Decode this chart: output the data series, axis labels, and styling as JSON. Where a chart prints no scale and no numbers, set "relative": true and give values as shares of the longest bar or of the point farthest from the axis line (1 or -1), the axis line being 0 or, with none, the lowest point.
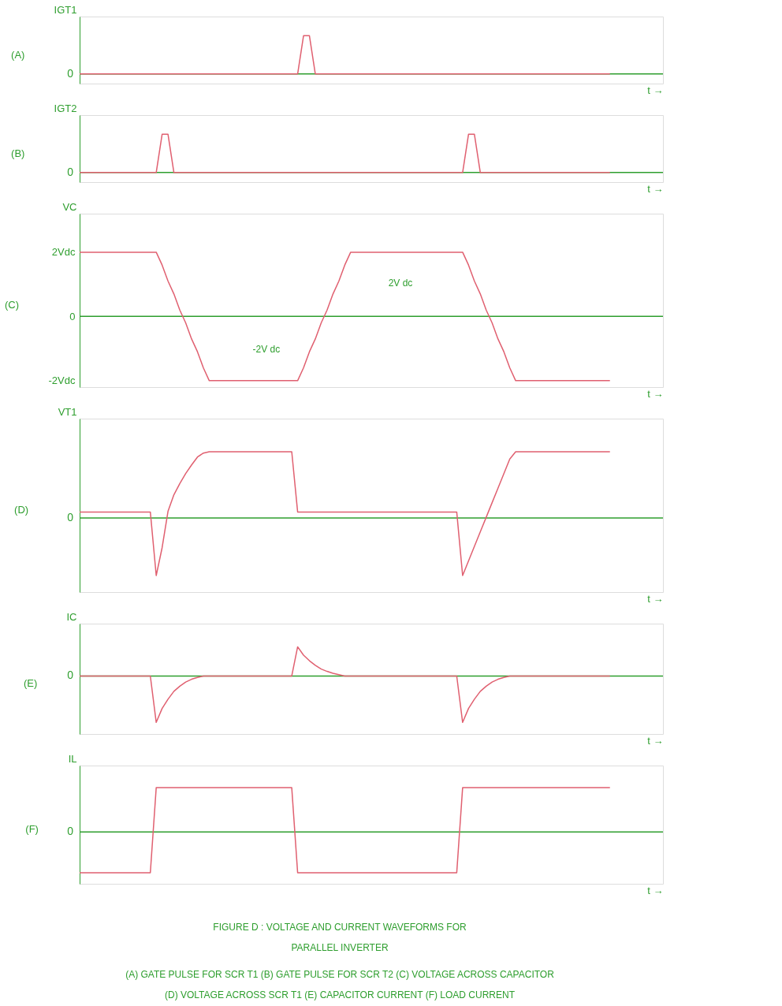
{
  "chart_data": [
    {
      "type": "line",
      "title": "(A)",
      "ylabel": "IGT1",
      "xlabel": "t →",
      "relative": true,
      "grid": false,
      "categories": [
        null,
        null,
        null,
        null,
        null,
        null,
        null,
        null,
        null,
        null,
        null,
        null,
        null,
        null,
        null,
        null,
        null,
        null,
        null,
        null,
        null,
        null,
        null,
        null,
        null,
        null,
        null,
        null,
        null,
        null,
        null,
        null,
        null,
        null,
        null,
        null,
        null,
        null,
        null,
        null,
        null,
        null,
        null,
        null,
        null,
        null,
        null,
        null,
        null,
        null,
        null,
        null,
        null,
        null,
        null,
        null,
        null,
        null,
        null,
        null,
        null,
        null,
        null,
        null,
        null,
        null,
        null,
        null,
        null,
        null,
        null,
        null,
        null,
        null,
        null,
        null,
        null,
        null,
        null,
        null,
        null,
        null,
        null,
        null,
        null,
        null,
        null,
        null,
        null,
        null,
        null,
        null,
        null,
        null,
        null,
        null,
        null,
        null,
        null,
        null
      ],
      "series": [
        {
          "color": "#e06070",
          "values": [
            0,
            0,
            0,
            0,
            0,
            0,
            0,
            0,
            0,
            0,
            0,
            0,
            0,
            0,
            0,
            0,
            0,
            0,
            0,
            0,
            0,
            0,
            0,
            0,
            0,
            0,
            0,
            0,
            0,
            0,
            0,
            0,
            0,
            0,
            0,
            0,
            0,
            0,
            1,
            1,
            0,
            0,
            0,
            0,
            0,
            0,
            0,
            0,
            0,
            0,
            0,
            0,
            0,
            0,
            0,
            0,
            0,
            0,
            0,
            0,
            0,
            0,
            0,
            0,
            0,
            0,
            0,
            0,
            0,
            0,
            0,
            0,
            0,
            0,
            0,
            0,
            0,
            0,
            0,
            0,
            0,
            0,
            0,
            0,
            0,
            0,
            0,
            0,
            0,
            0,
            0,
            null,
            null,
            null,
            null,
            null,
            null,
            null,
            null,
            null
          ]
        }
      ],
      "ref_lines": [
        {
          "axis": "y",
          "value": 0,
          "color": "#2e9e2e"
        }
      ],
      "annotations": [
        "0"
      ]
    },
    {
      "type": "line",
      "title": "(B)",
      "ylabel": "IGT2",
      "xlabel": "t →",
      "relative": true,
      "grid": false,
      "categories": [
        null,
        null,
        null,
        null,
        null,
        null,
        null,
        null,
        null,
        null,
        null,
        null,
        null,
        null,
        null,
        null,
        null,
        null,
        null,
        null,
        null,
        null,
        null,
        null,
        null,
        null,
        null,
        null,
        null,
        null,
        null,
        null,
        null,
        null,
        null,
        null,
        null,
        null,
        null,
        null,
        null,
        null,
        null,
        null,
        null,
        null,
        null,
        null,
        null,
        null,
        null,
        null,
        null,
        null,
        null,
        null,
        null,
        null,
        null,
        null,
        null,
        null,
        null,
        null,
        null,
        null,
        null,
        null,
        null,
        null,
        null,
        null,
        null,
        null,
        null,
        null,
        null,
        null,
        null,
        null,
        null,
        null,
        null,
        null,
        null,
        null,
        null,
        null,
        null,
        null,
        null,
        null,
        null,
        null,
        null,
        null,
        null,
        null,
        null,
        null
      ],
      "series": [
        {
          "color": "#e06070",
          "values": [
            0,
            0,
            0,
            0,
            0,
            0,
            0,
            0,
            0,
            0,
            0,
            0,
            0,
            0,
            1,
            1,
            0,
            0,
            0,
            0,
            0,
            0,
            0,
            0,
            0,
            0,
            0,
            0,
            0,
            0,
            0,
            0,
            0,
            0,
            0,
            0,
            0,
            0,
            0,
            0,
            0,
            0,
            0,
            0,
            0,
            0,
            0,
            0,
            0,
            0,
            0,
            0,
            0,
            0,
            0,
            0,
            0,
            0,
            0,
            0,
            0,
            0,
            0,
            0,
            0,
            0,
            1,
            1,
            0,
            0,
            0,
            0,
            0,
            0,
            0,
            0,
            0,
            0,
            0,
            0,
            0,
            0,
            0,
            0,
            0,
            0,
            0,
            0,
            0,
            0,
            0,
            null,
            null,
            null,
            null,
            null,
            null,
            null,
            null,
            null
          ]
        }
      ],
      "ref_lines": [
        {
          "axis": "y",
          "value": 0,
          "color": "#2e9e2e"
        }
      ],
      "annotations": [
        "0"
      ]
    },
    {
      "type": "line",
      "title": "(C)",
      "ylabel": "VC",
      "xlabel": "t →",
      "ylim": [
        -2.2,
        3.2
      ],
      "yticks": [
        {
          "value": 2,
          "label": "2Vdc"
        },
        0,
        {
          "value": -2,
          "label": "-2Vdc"
        }
      ],
      "grid": false,
      "categories": [
        null,
        null,
        null,
        null,
        null,
        null,
        null,
        null,
        null,
        null,
        null,
        null,
        null,
        null,
        null,
        null,
        null,
        null,
        null,
        null,
        null,
        null,
        null,
        null,
        null,
        null,
        null,
        null,
        null,
        null,
        null,
        null,
        null,
        null,
        null,
        null,
        null,
        null,
        null,
        null,
        null,
        null,
        null,
        null,
        null,
        null,
        null,
        null,
        null,
        null,
        null,
        null,
        null,
        null,
        null,
        null,
        null,
        null,
        null,
        null,
        null,
        null,
        null,
        null,
        null,
        null,
        null,
        null,
        null,
        null,
        null,
        null,
        null,
        null,
        null,
        null,
        null,
        null,
        null,
        null,
        null,
        null,
        null,
        null,
        null,
        null,
        null,
        null,
        null,
        null,
        null,
        null,
        null,
        null,
        null,
        null,
        null,
        null,
        null,
        null
      ],
      "series": [
        {
          "color": "#e06070",
          "values": [
            2,
            2,
            2,
            2,
            2,
            2,
            2,
            2,
            2,
            2,
            2,
            2,
            2,
            2,
            1.6,
            1.1,
            0.7,
            0.2,
            -0.2,
            -0.7,
            -1.1,
            -1.6,
            -2,
            -2,
            -2,
            -2,
            -2,
            -2,
            -2,
            -2,
            -2,
            -2,
            -2,
            -2,
            -2,
            -2,
            -2,
            -2,
            -1.6,
            -1.1,
            -0.7,
            -0.2,
            0.2,
            0.7,
            1.1,
            1.6,
            2,
            2,
            2,
            2,
            2,
            2,
            2,
            2,
            2,
            2,
            2,
            2,
            2,
            2,
            2,
            2,
            2,
            2,
            2,
            2,
            1.6,
            1.1,
            0.7,
            0.2,
            -0.2,
            -0.7,
            -1.1,
            -1.6,
            -2,
            -2,
            -2,
            -2,
            -2,
            -2,
            -2,
            -2,
            -2,
            -2,
            -2,
            -2,
            -2,
            -2,
            -2,
            -2,
            -2,
            null,
            null,
            null,
            null,
            null,
            null,
            null,
            null,
            null
          ]
        }
      ],
      "ref_lines": [
        {
          "axis": "y",
          "value": 0,
          "color": "#2e9e2e"
        }
      ],
      "annotations": [
        "-2V dc",
        "2V dc"
      ]
    },
    {
      "type": "line",
      "title": "(D)",
      "ylabel": "VT1",
      "xlabel": "t →",
      "relative": true,
      "grid": false,
      "categories": [
        null,
        null,
        null,
        null,
        null,
        null,
        null,
        null,
        null,
        null,
        null,
        null,
        null,
        null,
        null,
        null,
        null,
        null,
        null,
        null,
        null,
        null,
        null,
        null,
        null,
        null,
        null,
        null,
        null,
        null,
        null,
        null,
        null,
        null,
        null,
        null,
        null,
        null,
        null,
        null,
        null,
        null,
        null,
        null,
        null,
        null,
        null,
        null,
        null,
        null,
        null,
        null,
        null,
        null,
        null,
        null,
        null,
        null,
        null,
        null,
        null,
        null,
        null,
        null,
        null,
        null,
        null,
        null,
        null,
        null,
        null,
        null,
        null,
        null,
        null,
        null,
        null,
        null,
        null,
        null,
        null,
        null,
        null,
        null,
        null,
        null,
        null,
        null,
        null,
        null,
        null,
        null,
        null,
        null,
        null,
        null,
        null,
        null,
        null,
        null
      ],
      "series": [
        {
          "color": "#e06070",
          "values": [
            0.09,
            0.09,
            0.09,
            0.09,
            0.09,
            0.09,
            0.09,
            0.09,
            0.09,
            0.09,
            0.09,
            0.09,
            0.09,
            -0.87,
            -0.45,
            0.1,
            0.35,
            0.52,
            0.67,
            0.8,
            0.92,
            0.98,
            1,
            1,
            1,
            1,
            1,
            1,
            1,
            1,
            1,
            1,
            1,
            1,
            1,
            1,
            1,
            0.09,
            0.09,
            0.09,
            0.09,
            0.09,
            0.09,
            0.09,
            0.09,
            0.09,
            0.09,
            0.09,
            0.09,
            0.09,
            0.09,
            0.09,
            0.09,
            0.09,
            0.09,
            0.09,
            0.09,
            0.09,
            0.09,
            0.09,
            0.09,
            0.09,
            0.09,
            0.09,
            0.09,
            -0.87,
            -0.65,
            -0.43,
            -0.21,
            0.01,
            0.23,
            0.45,
            0.67,
            0.89,
            1,
            1,
            1,
            1,
            1,
            1,
            1,
            1,
            1,
            1,
            1,
            1,
            1,
            1,
            1,
            1,
            1,
            null,
            null,
            null,
            null,
            null,
            null,
            null,
            null,
            null
          ]
        }
      ],
      "ref_lines": [
        {
          "axis": "y",
          "value": 0,
          "color": "#2e9e2e"
        }
      ],
      "annotations": [
        "0"
      ]
    },
    {
      "type": "line",
      "title": "(E)",
      "ylabel": "IC",
      "xlabel": "t →",
      "relative": true,
      "grid": false,
      "categories": [
        null,
        null,
        null,
        null,
        null,
        null,
        null,
        null,
        null,
        null,
        null,
        null,
        null,
        null,
        null,
        null,
        null,
        null,
        null,
        null,
        null,
        null,
        null,
        null,
        null,
        null,
        null,
        null,
        null,
        null,
        null,
        null,
        null,
        null,
        null,
        null,
        null,
        null,
        null,
        null,
        null,
        null,
        null,
        null,
        null,
        null,
        null,
        null,
        null,
        null,
        null,
        null,
        null,
        null,
        null,
        null,
        null,
        null,
        null,
        null,
        null,
        null,
        null,
        null,
        null,
        null,
        null,
        null,
        null,
        null,
        null,
        null,
        null,
        null,
        null,
        null,
        null,
        null,
        null,
        null,
        null,
        null,
        null,
        null,
        null,
        null,
        null,
        null,
        null,
        null,
        null,
        null,
        null,
        null,
        null,
        null,
        null,
        null,
        null,
        null
      ],
      "series": [
        {
          "color": "#e06070",
          "values": [
            0,
            0,
            0,
            0,
            0,
            0,
            0,
            0,
            0,
            0,
            0,
            0,
            0,
            -1,
            -0.7,
            -0.5,
            -0.33,
            -0.22,
            -0.13,
            -0.07,
            -0.03,
            0,
            0,
            0,
            0,
            0,
            0,
            0,
            0,
            0,
            0,
            0,
            0,
            0,
            0,
            0,
            0,
            0.63,
            0.45,
            0.33,
            0.23,
            0.15,
            0.1,
            0.06,
            0.03,
            0,
            0,
            0,
            0,
            0,
            0,
            0,
            0,
            0,
            0,
            0,
            0,
            0,
            0,
            0,
            0,
            0,
            0,
            0,
            0,
            -1,
            -0.7,
            -0.5,
            -0.33,
            -0.22,
            -0.13,
            -0.07,
            -0.03,
            0,
            0,
            0,
            0,
            0,
            0,
            0,
            0,
            0,
            0,
            0,
            0,
            0,
            0,
            0,
            0,
            0,
            0,
            null,
            null,
            null,
            null,
            null,
            null,
            null,
            null,
            null
          ]
        }
      ],
      "ref_lines": [
        {
          "axis": "y",
          "value": 0,
          "color": "#2e9e2e"
        }
      ],
      "annotations": [
        "0"
      ]
    },
    {
      "type": "line",
      "title": "(F)",
      "ylabel": "IL",
      "xlabel": "t →",
      "relative": true,
      "grid": false,
      "categories": [
        null,
        null,
        null,
        null,
        null,
        null,
        null,
        null,
        null,
        null,
        null,
        null,
        null,
        null,
        null,
        null,
        null,
        null,
        null,
        null,
        null,
        null,
        null,
        null,
        null,
        null,
        null,
        null,
        null,
        null,
        null,
        null,
        null,
        null,
        null,
        null,
        null,
        null,
        null,
        null,
        null,
        null,
        null,
        null,
        null,
        null,
        null,
        null,
        null,
        null,
        null,
        null,
        null,
        null,
        null,
        null,
        null,
        null,
        null,
        null,
        null,
        null,
        null,
        null,
        null,
        null,
        null,
        null,
        null,
        null,
        null,
        null,
        null,
        null,
        null,
        null,
        null,
        null,
        null,
        null,
        null,
        null,
        null,
        null,
        null,
        null,
        null,
        null,
        null,
        null,
        null,
        null,
        null,
        null,
        null,
        null,
        null,
        null,
        null,
        null
      ],
      "series": [
        {
          "color": "#e06070",
          "values": [
            -0.92,
            -0.92,
            -0.92,
            -0.92,
            -0.92,
            -0.92,
            -0.92,
            -0.92,
            -0.92,
            -0.92,
            -0.92,
            -0.92,
            -0.92,
            1,
            1,
            1,
            1,
            1,
            1,
            1,
            1,
            1,
            1,
            1,
            1,
            1,
            1,
            1,
            1,
            1,
            1,
            1,
            1,
            1,
            1,
            1,
            1,
            -0.92,
            -0.92,
            -0.92,
            -0.92,
            -0.92,
            -0.92,
            -0.92,
            -0.92,
            -0.92,
            -0.92,
            -0.92,
            -0.92,
            -0.92,
            -0.92,
            -0.92,
            -0.92,
            -0.92,
            -0.92,
            -0.92,
            -0.92,
            -0.92,
            -0.92,
            -0.92,
            -0.92,
            -0.92,
            -0.92,
            -0.92,
            -0.92,
            1,
            1,
            1,
            1,
            1,
            1,
            1,
            1,
            1,
            1,
            1,
            1,
            1,
            1,
            1,
            1,
            1,
            1,
            1,
            1,
            1,
            1,
            1,
            1,
            1,
            1,
            null,
            null,
            null,
            null,
            null,
            null,
            null,
            null,
            null
          ]
        }
      ],
      "ref_lines": [
        {
          "axis": "y",
          "value": 0,
          "color": "#2e9e2e"
        }
      ],
      "annotations": [
        "0",
        "FIGURE D : VOLTAGE AND CURRENT WAVEFORMS FOR",
        "PARALLEL INVERTER",
        "(A) GATE PULSE FOR SCR T1 (B) GATE PULSE FOR SCR T2 (C) VOLTAGE ACROSS CAPACITOR",
        "(D) VOLTAGE ACROSS SCR T1 (E) CAPACITOR CURRENT (F) LOAD CURRENT"
      ]
    }
  ]
}
